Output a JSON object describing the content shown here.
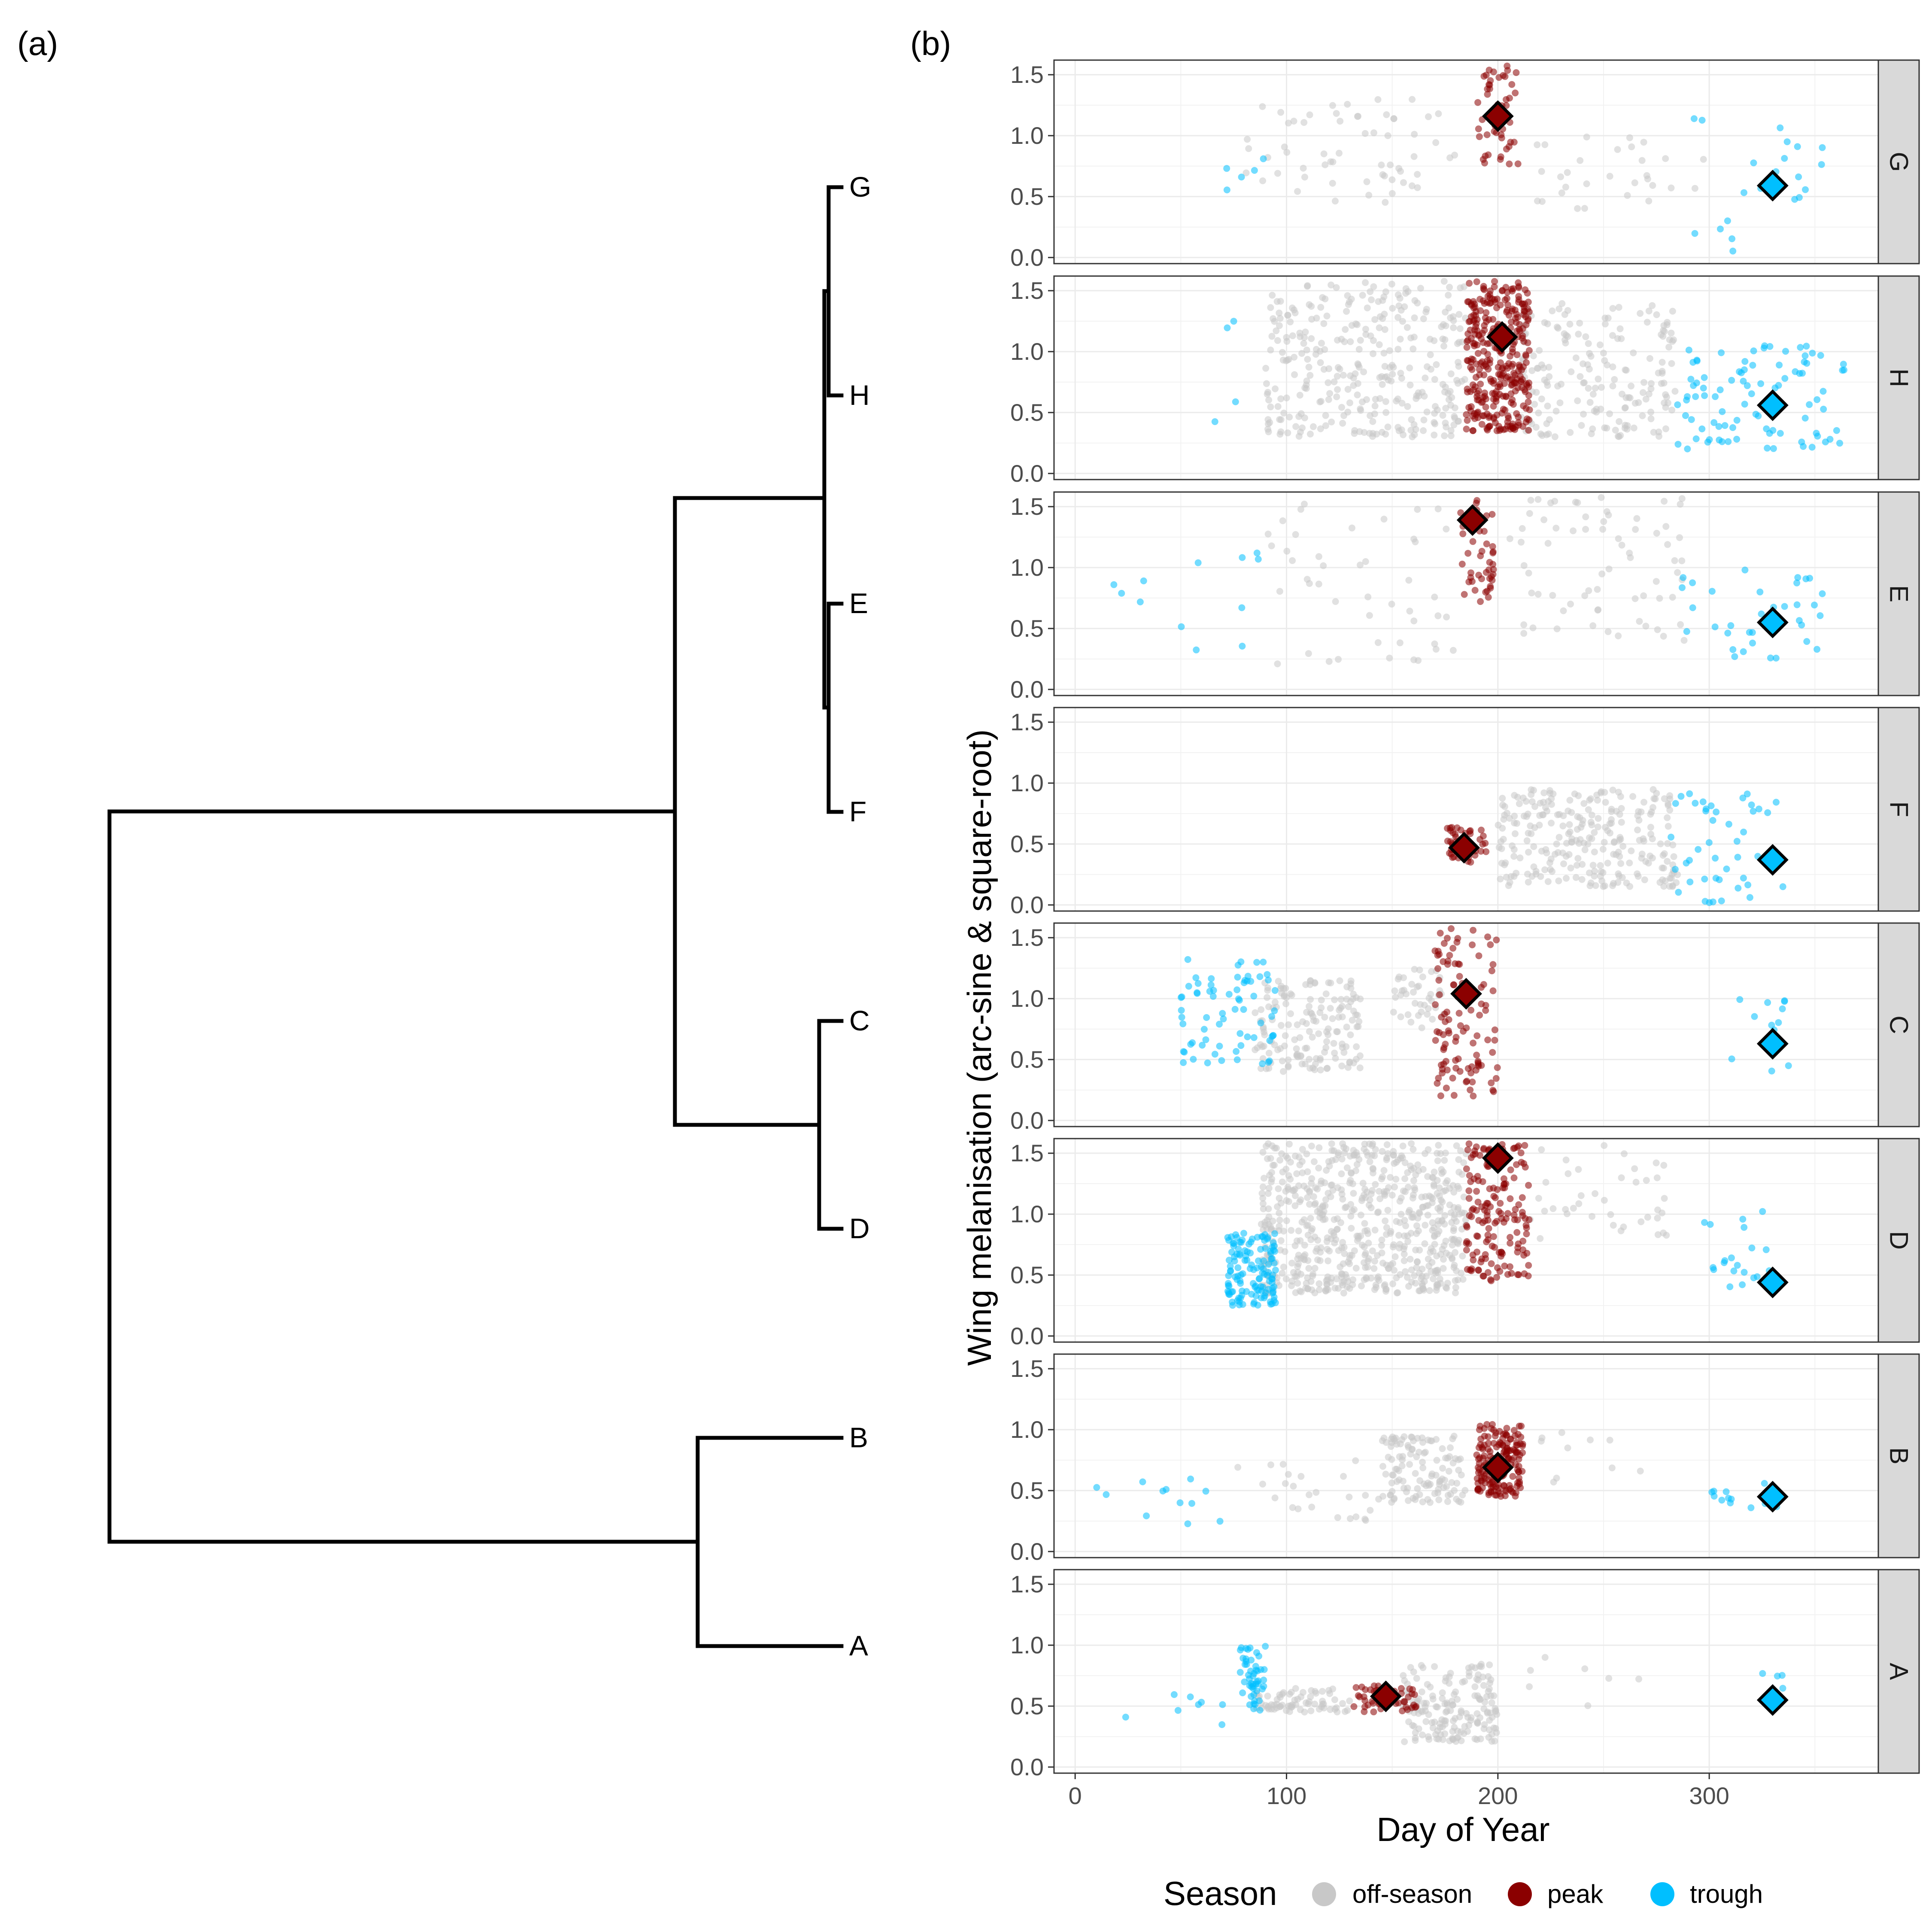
{
  "panel_labels": {
    "a": "(a)",
    "b": "(b)"
  },
  "dendrogram": {
    "tips": [
      "G",
      "H",
      "E",
      "F",
      "C",
      "D",
      "B",
      "A"
    ]
  },
  "chart_data": {
    "type": "scatter",
    "facet_order": [
      "G",
      "H",
      "E",
      "F",
      "C",
      "D",
      "B",
      "A"
    ],
    "xlabel": "Day of Year",
    "ylabel": "Wing melanisation (arc-sine & square-root)",
    "xlim": [
      -10,
      380
    ],
    "ylim": [
      -0.05,
      1.62
    ],
    "x_ticks": [
      0,
      100,
      200,
      300
    ],
    "y_ticks": [
      "0.0",
      "0.5",
      "1.0",
      "1.5"
    ],
    "grid": true,
    "legend": {
      "title": "Season",
      "position": "bottom",
      "entries": [
        {
          "name": "off-season",
          "color": "#c8c8c8"
        },
        {
          "name": "peak",
          "color": "#8b0000"
        },
        {
          "name": "trough",
          "color": "#00bfff"
        }
      ]
    },
    "colors": {
      "off-season": "#c8c8c8",
      "peak": "#8b0000",
      "trough": "#00bfff"
    },
    "seasonal_means": [
      {
        "facet": "G",
        "peak": [
          200,
          1.16
        ],
        "trough": [
          330,
          0.59
        ]
      },
      {
        "facet": "H",
        "peak": [
          202,
          1.12
        ],
        "trough": [
          330,
          0.56
        ]
      },
      {
        "facet": "E",
        "peak": [
          188,
          1.39
        ],
        "trough": [
          330,
          0.55
        ]
      },
      {
        "facet": "F",
        "peak": [
          184,
          0.47
        ],
        "trough": [
          330,
          0.37
        ]
      },
      {
        "facet": "C",
        "peak": [
          185,
          1.04
        ],
        "trough": [
          330,
          0.63
        ]
      },
      {
        "facet": "D",
        "peak": [
          200,
          1.46
        ],
        "trough": [
          330,
          0.44
        ]
      },
      {
        "facet": "B",
        "peak": [
          200,
          0.69
        ],
        "trough": [
          330,
          0.45
        ]
      },
      {
        "facet": "A",
        "peak": [
          147,
          0.58
        ],
        "trough": [
          330,
          0.55
        ]
      }
    ],
    "point_groups": [
      {
        "facet": "G",
        "season": "off-season",
        "x": [
          80,
          180
        ],
        "y": [
          0.45,
          1.3
        ],
        "n": 60
      },
      {
        "facet": "G",
        "season": "off-season",
        "x": [
          210,
          300
        ],
        "y": [
          0.4,
          1.0
        ],
        "n": 30
      },
      {
        "facet": "G",
        "season": "peak",
        "x": [
          190,
          210
        ],
        "y": [
          0.75,
          1.58
        ],
        "n": 50
      },
      {
        "facet": "G",
        "season": "trough",
        "x": [
          290,
          355
        ],
        "y": [
          0.05,
          1.15
        ],
        "n": 22
      },
      {
        "facet": "G",
        "season": "trough",
        "x": [
          35,
          90
        ],
        "y": [
          0.5,
          1.0
        ],
        "n": 5
      },
      {
        "facet": "H",
        "season": "off-season",
        "x": [
          90,
          185
        ],
        "y": [
          0.3,
          1.58
        ],
        "n": 320
      },
      {
        "facet": "H",
        "season": "off-season",
        "x": [
          210,
          285
        ],
        "y": [
          0.3,
          1.4
        ],
        "n": 180
      },
      {
        "facet": "H",
        "season": "peak",
        "x": [
          185,
          215
        ],
        "y": [
          0.35,
          1.58
        ],
        "n": 330
      },
      {
        "facet": "H",
        "season": "trough",
        "x": [
          285,
          365
        ],
        "y": [
          0.2,
          1.05
        ],
        "n": 90
      },
      {
        "facet": "H",
        "season": "trough",
        "x": [
          65,
          80
        ],
        "y": [
          0.25,
          1.25
        ],
        "n": 4
      },
      {
        "facet": "E",
        "season": "off-season",
        "x": [
          90,
          180
        ],
        "y": [
          0.2,
          1.58
        ],
        "n": 45
      },
      {
        "facet": "E",
        "season": "off-season",
        "x": [
          205,
          290
        ],
        "y": [
          0.4,
          1.58
        ],
        "n": 70
      },
      {
        "facet": "E",
        "season": "peak",
        "x": [
          182,
          198
        ],
        "y": [
          0.72,
          1.58
        ],
        "n": 45
      },
      {
        "facet": "E",
        "season": "trough",
        "x": [
          285,
          355
        ],
        "y": [
          0.2,
          1.0
        ],
        "n": 35
      },
      {
        "facet": "E",
        "season": "trough",
        "x": [
          12,
          90
        ],
        "y": [
          0.25,
          1.15
        ],
        "n": 12
      },
      {
        "facet": "F",
        "season": "off-season",
        "x": [
          200,
          285
        ],
        "y": [
          0.15,
          0.95
        ],
        "n": 260
      },
      {
        "facet": "F",
        "season": "peak",
        "x": [
          175,
          195
        ],
        "y": [
          0.35,
          0.65
        ],
        "n": 40
      },
      {
        "facet": "F",
        "season": "trough",
        "x": [
          280,
          335
        ],
        "y": [
          0.0,
          0.95
        ],
        "n": 45
      },
      {
        "facet": "C",
        "season": "off-season",
        "x": [
          85,
          135
        ],
        "y": [
          0.4,
          1.15
        ],
        "n": 160
      },
      {
        "facet": "C",
        "season": "off-season",
        "x": [
          150,
          175
        ],
        "y": [
          0.75,
          1.25
        ],
        "n": 40
      },
      {
        "facet": "C",
        "season": "peak",
        "x": [
          170,
          200
        ],
        "y": [
          0.2,
          1.58
        ],
        "n": 110
      },
      {
        "facet": "C",
        "season": "trough",
        "x": [
          50,
          95
        ],
        "y": [
          0.45,
          1.35
        ],
        "n": 70
      },
      {
        "facet": "C",
        "season": "trough",
        "x": [
          310,
          340
        ],
        "y": [
          0.4,
          1.05
        ],
        "n": 12
      },
      {
        "facet": "D",
        "season": "off-season",
        "x": [
          88,
          185
        ],
        "y": [
          0.35,
          1.58
        ],
        "n": 650
      },
      {
        "facet": "D",
        "season": "off-season",
        "x": [
          215,
          280
        ],
        "y": [
          0.8,
          1.58
        ],
        "n": 40
      },
      {
        "facet": "D",
        "season": "peak",
        "x": [
          185,
          215
        ],
        "y": [
          0.45,
          1.58
        ],
        "n": 160
      },
      {
        "facet": "D",
        "season": "trough",
        "x": [
          72,
          95
        ],
        "y": [
          0.25,
          0.85
        ],
        "n": 130
      },
      {
        "facet": "D",
        "season": "trough",
        "x": [
          295,
          330
        ],
        "y": [
          0.4,
          1.05
        ],
        "n": 20
      },
      {
        "facet": "B",
        "season": "off-season",
        "x": [
          145,
          185
        ],
        "y": [
          0.4,
          0.95
        ],
        "n": 120
      },
      {
        "facet": "B",
        "season": "off-season",
        "x": [
          75,
          145
        ],
        "y": [
          0.25,
          0.75
        ],
        "n": 25
      },
      {
        "facet": "B",
        "season": "off-season",
        "x": [
          215,
          275
        ],
        "y": [
          0.55,
          1.0
        ],
        "n": 10
      },
      {
        "facet": "B",
        "season": "peak",
        "x": [
          190,
          212
        ],
        "y": [
          0.45,
          1.05
        ],
        "n": 170
      },
      {
        "facet": "B",
        "season": "trough",
        "x": [
          10,
          75
        ],
        "y": [
          0.22,
          0.6
        ],
        "n": 12
      },
      {
        "facet": "B",
        "season": "trough",
        "x": [
          300,
          338
        ],
        "y": [
          0.35,
          0.65
        ],
        "n": 12
      },
      {
        "facet": "A",
        "season": "off-season",
        "x": [
          85,
          130
        ],
        "y": [
          0.45,
          0.65
        ],
        "n": 70
      },
      {
        "facet": "A",
        "season": "off-season",
        "x": [
          155,
          200
        ],
        "y": [
          0.2,
          0.85
        ],
        "n": 170
      },
      {
        "facet": "A",
        "season": "off-season",
        "x": [
          200,
          275
        ],
        "y": [
          0.5,
          0.9
        ],
        "n": 7
      },
      {
        "facet": "A",
        "season": "peak",
        "x": [
          130,
          162
        ],
        "y": [
          0.45,
          0.68
        ],
        "n": 50
      },
      {
        "facet": "A",
        "season": "trough",
        "x": [
          78,
          90
        ],
        "y": [
          0.45,
          1.0
        ],
        "n": 50
      },
      {
        "facet": "A",
        "season": "trough",
        "x": [
          15,
          70
        ],
        "y": [
          0.3,
          0.7
        ],
        "n": 8
      },
      {
        "facet": "A",
        "season": "trough",
        "x": [
          325,
          335
        ],
        "y": [
          0.5,
          0.8
        ],
        "n": 6
      }
    ]
  }
}
